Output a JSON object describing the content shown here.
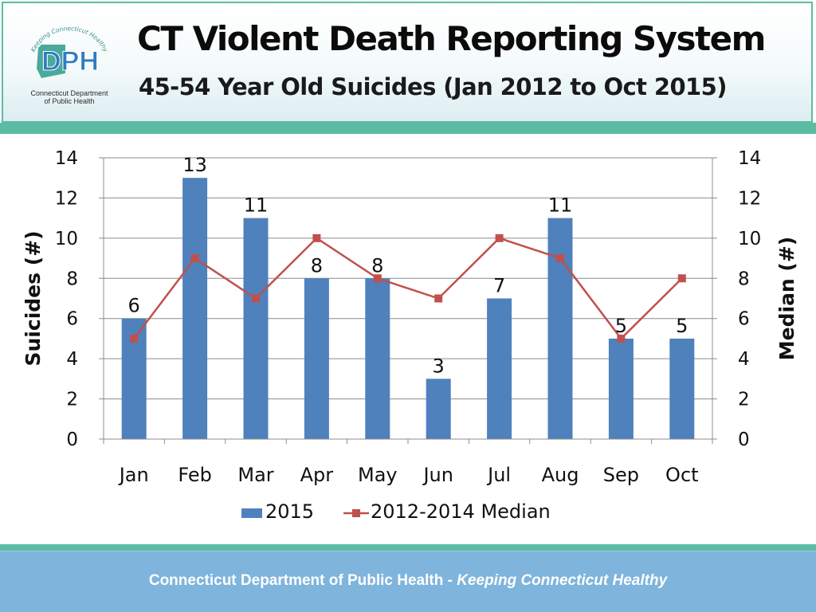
{
  "header": {
    "title": "CT Violent Death Reporting System",
    "subtitle": "45-54 Year Old Suicides (Jan 2012 to Oct 2015)",
    "logo": {
      "icon": "dph-logo-icon",
      "text": "DPH",
      "arc_text": "Keeping Connecticut Healthy",
      "caption_line1": "Connecticut Department",
      "caption_line2": "of Public Health"
    }
  },
  "footer": {
    "organization": "Connecticut Department of Public Health",
    "separator": " - ",
    "tagline": "Keeping Connecticut Healthy"
  },
  "colors": {
    "accent": "#5cbca3",
    "footer_bg": "#7fb4dc",
    "bar": "#4f81bd",
    "line": "#c0504d"
  },
  "chart_data": {
    "type": "bar",
    "categories": [
      "Jan",
      "Feb",
      "Mar",
      "Apr",
      "May",
      "Jun",
      "Jul",
      "Aug",
      "Sep",
      "Oct"
    ],
    "series": [
      {
        "name": "2015",
        "type": "bar",
        "axis": "left",
        "values": [
          6,
          13,
          11,
          8,
          8,
          3,
          7,
          11,
          5,
          5
        ],
        "data_labels": true
      },
      {
        "name": "2012-2014 Median",
        "type": "line",
        "axis": "right",
        "marker": "square",
        "values": [
          5,
          9,
          7,
          10,
          8,
          7,
          10,
          9,
          5,
          8
        ],
        "data_labels": false
      }
    ],
    "ylabel": "Suicides (#)",
    "y2label": "Median (#)",
    "ylim": [
      0,
      14
    ],
    "y2lim": [
      0,
      14
    ],
    "yticks": [
      0,
      2,
      4,
      6,
      8,
      10,
      12,
      14
    ],
    "grid": true,
    "legend_position": "bottom"
  }
}
